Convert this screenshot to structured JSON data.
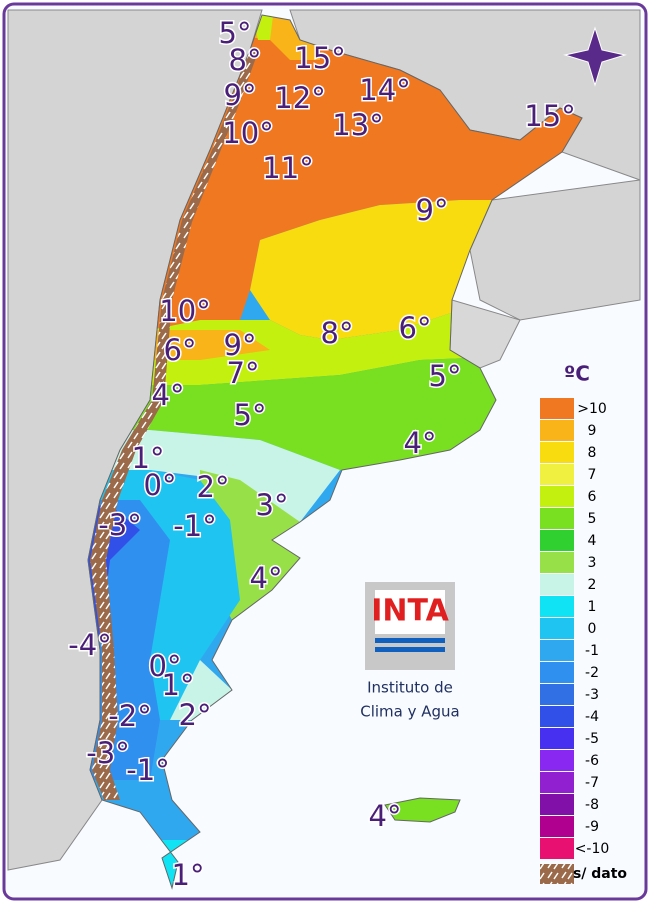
{
  "map": {
    "labels": [
      "5°",
      "8°",
      "15°",
      "9°",
      "12°",
      "14°",
      "10°",
      "13°",
      "15°",
      "11°",
      "9°",
      "10°",
      "8°",
      "6°",
      "6°",
      "9°",
      "7°",
      "5°",
      "4°",
      "5°",
      "4°",
      "1°",
      "0°",
      "2°",
      "3°",
      "-3°",
      "-1°",
      "4°",
      "-4°",
      "0°",
      "1°",
      "-2°",
      "2°",
      "-3°",
      "-1°",
      "4°",
      "1°"
    ],
    "legend": {
      "title": "ºC",
      "items": [
        {
          "label": ">10",
          "color": "#f07820"
        },
        {
          "label": "9",
          "color": "#f8b418"
        },
        {
          "label": "8",
          "color": "#f8dc10"
        },
        {
          "label": "7",
          "color": "#f0f040"
        },
        {
          "label": "6",
          "color": "#c4f010"
        },
        {
          "label": "5",
          "color": "#78e020"
        },
        {
          "label": "4",
          "color": "#30d030"
        },
        {
          "label": "3",
          "color": "#98e048"
        },
        {
          "label": "2",
          "color": "#c8f4e8"
        },
        {
          "label": "1",
          "color": "#10e4f4"
        },
        {
          "label": "0",
          "color": "#20c4f0"
        },
        {
          "label": "-1",
          "color": "#30a8f0"
        },
        {
          "label": "-2",
          "color": "#3090f0"
        },
        {
          "label": "-3",
          "color": "#3070e4"
        },
        {
          "label": "-4",
          "color": "#3050e8"
        },
        {
          "label": "-5",
          "color": "#4830f0"
        },
        {
          "label": "-6",
          "color": "#8828f0"
        },
        {
          "label": "-7",
          "color": "#9020d0"
        },
        {
          "label": "-8",
          "color": "#8010a8"
        },
        {
          "label": "-9",
          "color": "#b00090"
        },
        {
          "label": "<-10",
          "color": "#e81070"
        }
      ],
      "no_data": "s/ dato"
    },
    "logo": {
      "mark": "INTA",
      "caption_line1": "Instituto de",
      "caption_line2": "Clima y Agua"
    }
  }
}
